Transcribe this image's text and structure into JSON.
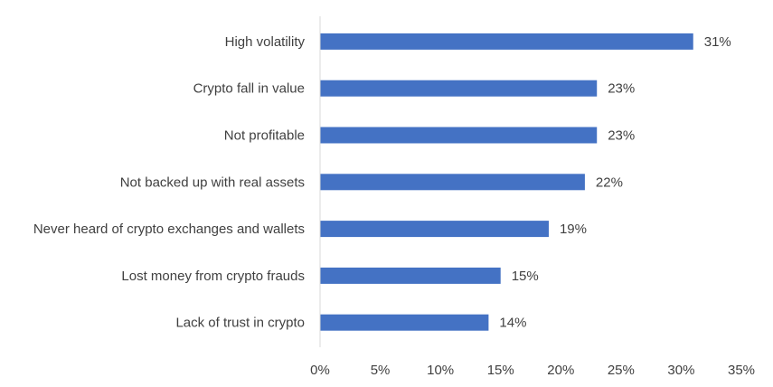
{
  "chart_data": {
    "type": "bar",
    "orientation": "horizontal",
    "categories": [
      "High volatility",
      "Crypto fall in value",
      "Not profitable",
      "Not backed up with real assets",
      "Never heard of crypto exchanges and wallets",
      "Lost money from crypto frauds",
      "Lack of trust in crypto"
    ],
    "values": [
      31,
      23,
      23,
      22,
      19,
      15,
      14
    ],
    "value_labels": [
      "31%",
      "23%",
      "23%",
      "22%",
      "19%",
      "15%",
      "14%"
    ],
    "x_ticks": [
      0,
      5,
      10,
      15,
      20,
      25,
      30,
      35
    ],
    "x_tick_labels": [
      "0%",
      "5%",
      "10%",
      "15%",
      "20%",
      "25%",
      "30%",
      "35%"
    ],
    "xlim": [
      0,
      35
    ],
    "title": "",
    "xlabel": "",
    "ylabel": "",
    "grid": false,
    "legend": "none",
    "bar_color": "#4472C4",
    "axis_color": "#D9D9D9",
    "text_color": "#404040"
  }
}
